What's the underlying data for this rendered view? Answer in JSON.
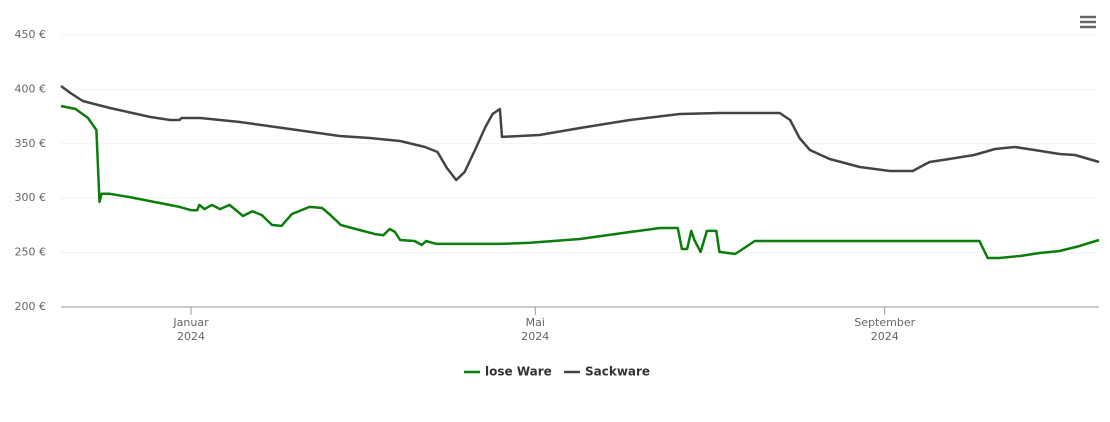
{
  "chart_data": {
    "type": "line",
    "series": [
      {
        "name": "lose Ware",
        "color": "#0a7d0a",
        "x": [
          2023.875,
          2023.889,
          2023.901,
          2023.909,
          2023.912,
          2023.914,
          2023.922,
          2023.941,
          2023.97,
          2023.989,
          2024.0,
          2024.006,
          2024.008,
          2024.013,
          2024.02,
          2024.028,
          2024.037,
          2024.042,
          2024.05,
          2024.059,
          2024.068,
          2024.078,
          2024.087,
          2024.097,
          2024.114,
          2024.126,
          2024.134,
          2024.144,
          2024.162,
          2024.177,
          2024.185,
          2024.191,
          2024.196,
          2024.201,
          2024.215,
          2024.222,
          2024.226,
          2024.232,
          2024.236,
          2024.297,
          2024.326,
          2024.374,
          2024.422,
          2024.451,
          2024.468,
          2024.472,
          2024.477,
          2024.481,
          2024.484,
          2024.49,
          2024.496,
          2024.505,
          2024.508,
          2024.523,
          2024.532,
          2024.542,
          2024.758,
          2024.766,
          2024.777,
          2024.797,
          2024.816,
          2024.835,
          2024.854,
          2024.873
        ],
        "values": [
          384.7,
          382,
          373.7,
          362.7,
          296.5,
          304,
          304,
          301,
          295.6,
          292,
          289,
          289,
          293.8,
          290,
          293.8,
          290,
          293.8,
          290,
          283.6,
          288,
          284.6,
          275.4,
          274.5,
          285.5,
          292,
          291,
          284.6,
          275.4,
          270.8,
          267,
          266,
          271.7,
          269,
          261.6,
          260.7,
          257,
          260.7,
          259,
          258,
          258,
          259,
          262.5,
          268.9,
          272.6,
          272.6,
          253.3,
          253.3,
          269.9,
          261.6,
          250.6,
          269.9,
          269.9,
          250.6,
          248.7,
          254.2,
          260.7,
          260.7,
          245,
          245,
          246.9,
          249.6,
          251.5,
          256,
          261.6
        ]
      },
      {
        "name": "Sackware",
        "color": "#444444",
        "x": [
          2023.875,
          2023.884,
          2023.896,
          2023.922,
          2023.961,
          2023.98,
          2023.989,
          2023.991,
          2024.009,
          2024.047,
          2024.095,
          2024.143,
          2024.172,
          2024.201,
          2024.225,
          2024.237,
          2024.246,
          2024.255,
          2024.263,
          2024.273,
          2024.283,
          2024.29,
          2024.297,
          2024.299,
          2024.335,
          2024.374,
          2024.422,
          2024.47,
          2024.508,
          2024.566,
          2024.576,
          2024.585,
          2024.595,
          2024.614,
          2024.643,
          2024.672,
          2024.694,
          2024.701,
          2024.71,
          2024.729,
          2024.753,
          2024.773,
          2024.792,
          2024.811,
          2024.835,
          2024.85,
          2024.873
        ],
        "values": [
          403.1,
          396.7,
          389.3,
          382.9,
          374.6,
          371.9,
          371.9,
          373.7,
          373.7,
          370,
          363.6,
          357.2,
          355.3,
          352.6,
          347.1,
          342.5,
          327.8,
          316.7,
          324.1,
          344.3,
          365.4,
          377.4,
          382,
          356.3,
          358.1,
          364.5,
          371.9,
          377.4,
          378.3,
          378.3,
          371.9,
          355.3,
          344.3,
          336,
          328.7,
          325,
          325,
          328.7,
          333.3,
          336,
          339.7,
          345.2,
          347.1,
          344.3,
          340.6,
          339.7,
          333.3
        ]
      }
    ],
    "xlim": [
      2023.875,
      2024.873
    ],
    "xticks": [
      {
        "value": 2024.0,
        "label": "Januar 2024"
      },
      {
        "value": 2024.331,
        "label": "Mai 2024"
      },
      {
        "value": 2024.667,
        "label": "September 2024"
      }
    ],
    "ylim": [
      200,
      450
    ],
    "yticks": [
      {
        "value": 200,
        "label": "200 €"
      },
      {
        "value": 250,
        "label": "250 €"
      },
      {
        "value": 300,
        "label": "300 €"
      },
      {
        "value": 350,
        "label": "350 €"
      },
      {
        "value": 400,
        "label": "400 €"
      },
      {
        "value": 450,
        "label": "450 €"
      }
    ],
    "grid": true,
    "legend": "bottom"
  }
}
